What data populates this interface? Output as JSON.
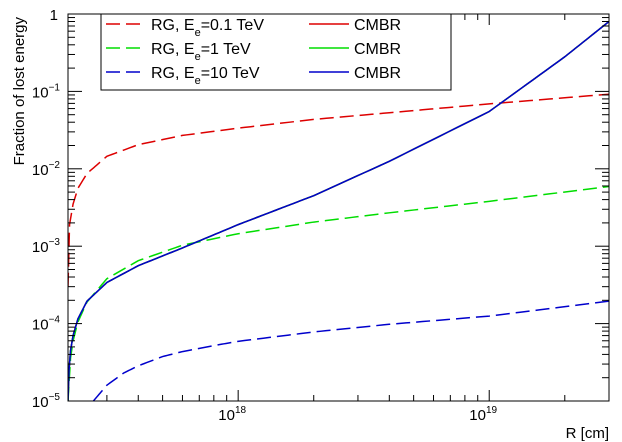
{
  "chart_data": {
    "type": "line",
    "xlabel": "R [cm]",
    "ylabel": "Fraction of lost energy",
    "x_scale": "log",
    "y_scale": "log",
    "xlim": [
      2.1e+17,
      3e+19
    ],
    "ylim": [
      1e-05,
      1
    ],
    "x_ticks": [
      {
        "value": 1e+18,
        "base": "10",
        "exp": "18"
      },
      {
        "value": 1e+19,
        "base": "10",
        "exp": "19"
      }
    ],
    "y_ticks": [
      {
        "value": 1e-05,
        "base": "10",
        "exp": "−5"
      },
      {
        "value": 0.0001,
        "base": "10",
        "exp": "−4"
      },
      {
        "value": 0.001,
        "base": "10",
        "exp": "−3"
      },
      {
        "value": 0.01,
        "base": "10",
        "exp": "−2"
      },
      {
        "value": 0.1,
        "base": "10",
        "exp": "−1"
      },
      {
        "value": 1,
        "base": "1",
        "exp": ""
      }
    ],
    "legend_position": "top-left",
    "grid": false,
    "series": [
      {
        "name": "RG, E_e=0.1 TeV",
        "legend": {
          "pre": "RG, E",
          "sub": "e",
          "post": "=0.1 TeV"
        },
        "color": "#dd0000",
        "dash": "dashed",
        "x": [
          2.1e+17,
          2.13e+17,
          2.2e+17,
          2.3e+17,
          2.5e+17,
          3e+17,
          4e+17,
          6e+17,
          1e+18,
          2e+18,
          4e+18,
          1e+19,
          3e+19
        ],
        "y": [
          0.0003,
          0.0019,
          0.0035,
          0.0056,
          0.0087,
          0.0145,
          0.0205,
          0.027,
          0.0335,
          0.0435,
          0.053,
          0.069,
          0.092
        ]
      },
      {
        "name": "CMBR",
        "legend": {
          "pre": "CMBR",
          "sub": "",
          "post": ""
        },
        "color": "#dd0000",
        "dash": "solid",
        "x": [
          2.1e+17,
          2.12e+17,
          2.15e+17,
          2.2e+17,
          2.3e+17,
          2.5e+17,
          3e+17,
          4e+17,
          6e+17,
          1e+18,
          2e+18,
          4e+18,
          1e+19,
          2e+19,
          3e+19
        ],
        "y": [
          1e-05,
          2.5e-05,
          4.5e-05,
          7e-05,
          0.000115,
          0.000195,
          0.00034,
          0.00056,
          0.00095,
          0.0019,
          0.0045,
          0.0125,
          0.055,
          0.28,
          0.8
        ]
      },
      {
        "name": "RG, E_e=1 TeV",
        "legend": {
          "pre": "RG, E",
          "sub": "e",
          "post": "=1 TeV"
        },
        "color": "#00dd00",
        "dash": "dashed",
        "x": [
          2.1e+17,
          2.15e+17,
          2.2e+17,
          2.3e+17,
          2.5e+17,
          3e+17,
          4e+17,
          6e+17,
          1e+18,
          2e+18,
          4e+18,
          1e+19,
          3e+19
        ],
        "y": [
          1e-05,
          3.6e-05,
          6e-05,
          0.000105,
          0.00019,
          0.00038,
          0.00065,
          0.00103,
          0.00145,
          0.00205,
          0.0027,
          0.0038,
          0.0059
        ]
      },
      {
        "name": "CMBR",
        "legend": {
          "pre": "CMBR",
          "sub": "",
          "post": ""
        },
        "color": "#00dd00",
        "dash": "solid",
        "x": [
          2.1e+17,
          2.12e+17,
          2.15e+17,
          2.2e+17,
          2.3e+17,
          2.5e+17,
          3e+17,
          4e+17,
          6e+17,
          1e+18,
          2e+18,
          4e+18,
          1e+19,
          2e+19,
          3e+19
        ],
        "y": [
          1e-05,
          2.5e-05,
          4.5e-05,
          7e-05,
          0.000115,
          0.000195,
          0.00034,
          0.00056,
          0.00095,
          0.0019,
          0.0045,
          0.0125,
          0.055,
          0.28,
          0.8
        ]
      },
      {
        "name": "RG, E_e=10 TeV",
        "legend": {
          "pre": "RG, E",
          "sub": "e",
          "post": "=10 TeV"
        },
        "color": "#0000cc",
        "dash": "dashed",
        "x": [
          2.65e+17,
          3e+17,
          3.5e+17,
          4e+17,
          5e+17,
          6e+17,
          8e+17,
          1e+18,
          2e+18,
          4e+18,
          1e+19,
          3e+19
        ],
        "y": [
          1e-05,
          1.6e-05,
          2.3e-05,
          2.85e-05,
          3.75e-05,
          4.35e-05,
          5.2e-05,
          5.9e-05,
          7.8e-05,
          9.8e-05,
          0.000125,
          0.000195
        ]
      },
      {
        "name": "CMBR",
        "legend": {
          "pre": "CMBR",
          "sub": "",
          "post": ""
        },
        "color": "#0000cc",
        "dash": "solid",
        "x": [
          2.1e+17,
          2.12e+17,
          2.15e+17,
          2.2e+17,
          2.3e+17,
          2.5e+17,
          3e+17,
          4e+17,
          6e+17,
          1e+18,
          2e+18,
          4e+18,
          1e+19,
          2e+19,
          3e+19
        ],
        "y": [
          1e-05,
          2.5e-05,
          4.5e-05,
          7e-05,
          0.000115,
          0.000195,
          0.00034,
          0.00056,
          0.00095,
          0.0019,
          0.0045,
          0.0125,
          0.055,
          0.28,
          0.8
        ]
      }
    ],
    "legend_layout": [
      {
        "row": 0,
        "col": 0,
        "series": 0
      },
      {
        "row": 0,
        "col": 1,
        "series": 1
      },
      {
        "row": 1,
        "col": 0,
        "series": 2
      },
      {
        "row": 1,
        "col": 1,
        "series": 3
      },
      {
        "row": 2,
        "col": 0,
        "series": 4
      },
      {
        "row": 2,
        "col": 1,
        "series": 5
      }
    ]
  }
}
